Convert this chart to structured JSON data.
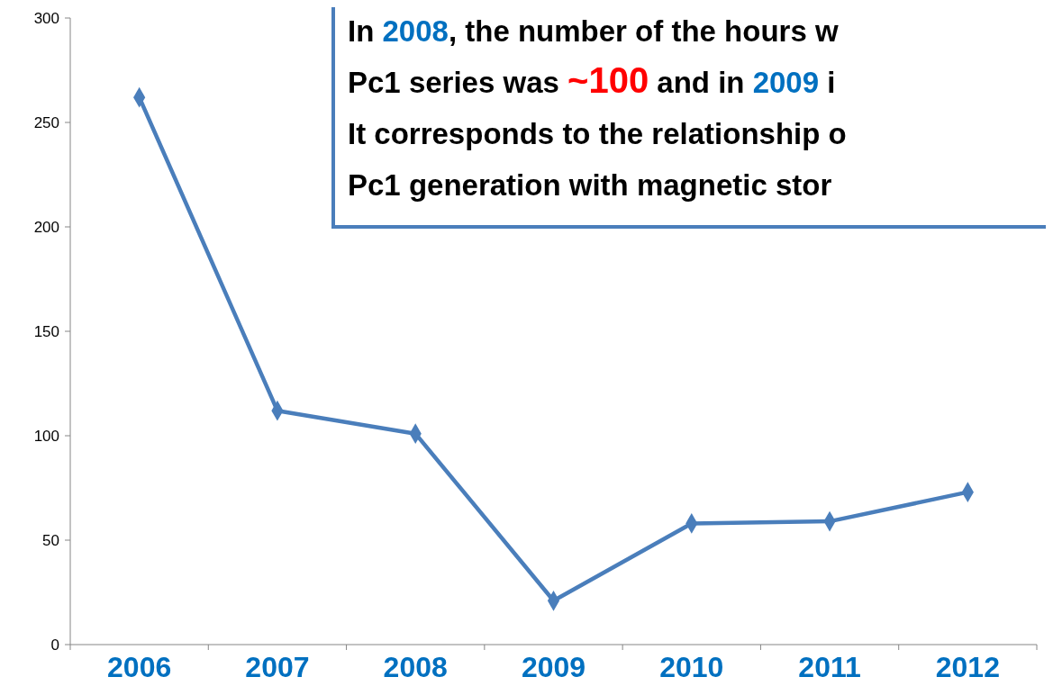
{
  "chart_data": {
    "type": "line",
    "categories": [
      "2006",
      "2007",
      "2008",
      "2009",
      "2010",
      "2011",
      "2012"
    ],
    "series": [
      {
        "color": "#4a7ebb",
        "values": [
          262,
          112,
          101,
          21,
          58,
          59,
          73
        ]
      }
    ],
    "ylim": [
      0,
      300
    ],
    "yticks": [
      0,
      50,
      100,
      150,
      200,
      250,
      300
    ],
    "grid": false,
    "marker": "diamond",
    "line_style": "solid",
    "annotations": [
      "In 2008, the number of the hours w",
      "Pc1 series was ~100 and in 2009 i",
      "It corresponds to the relationship o",
      "Pc1 generation with magnetic stor"
    ]
  }
}
